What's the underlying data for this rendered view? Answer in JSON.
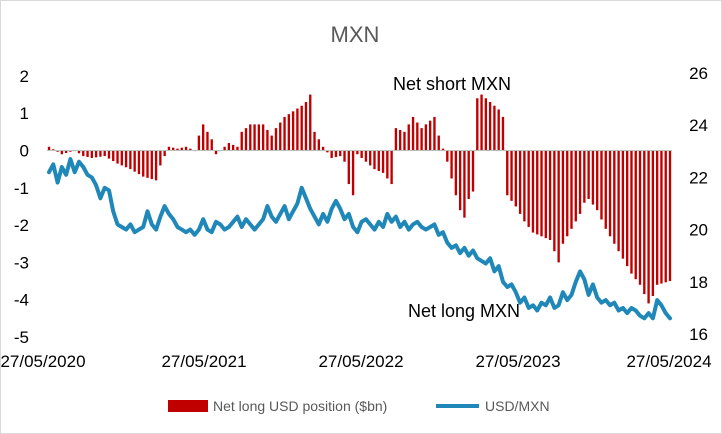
{
  "chart_data": {
    "type": "bar+line",
    "title": "MXN",
    "x_tick_labels": [
      "27/05/2020",
      "27/05/2021",
      "27/05/2022",
      "27/05/2023",
      "27/05/2024"
    ],
    "y_left": {
      "ticks": [
        2,
        1,
        0,
        -1,
        -2,
        -3,
        -4,
        -5
      ],
      "range": [
        -5,
        2
      ]
    },
    "y_right": {
      "ticks": [
        26,
        24,
        22,
        20,
        18,
        16
      ],
      "range": [
        16,
        26
      ]
    },
    "annotations": {
      "net_short": "Net short MXN",
      "net_long": "Net long MXN"
    },
    "grid": false,
    "legend_position": "bottom",
    "series": [
      {
        "name": "Net long USD position ($bn)",
        "type": "bar",
        "axis": "left",
        "color": "#C00000",
        "keyframes": [
          [
            0,
            0.1
          ],
          [
            3,
            -0.1
          ],
          [
            6,
            0.0
          ],
          [
            8,
            -0.15
          ],
          [
            10,
            -0.2
          ],
          [
            13,
            -0.15
          ],
          [
            16,
            -0.35
          ],
          [
            19,
            -0.5
          ],
          [
            22,
            -0.7
          ],
          [
            25,
            -0.8
          ],
          [
            26,
            -0.4
          ],
          [
            28,
            0.1
          ],
          [
            30,
            0.05
          ],
          [
            32,
            0.1
          ],
          [
            34,
            0.0
          ],
          [
            35,
            0.4
          ],
          [
            36,
            0.7
          ],
          [
            37,
            0.5
          ],
          [
            38,
            0.3
          ],
          [
            39,
            -0.1
          ],
          [
            40,
            0.0
          ],
          [
            42,
            0.2
          ],
          [
            44,
            0.1
          ],
          [
            45,
            0.5
          ],
          [
            47,
            0.7
          ],
          [
            50,
            0.7
          ],
          [
            52,
            0.4
          ],
          [
            53,
            0.6
          ],
          [
            55,
            0.9
          ],
          [
            57,
            1.05
          ],
          [
            59,
            1.2
          ],
          [
            60,
            1.3
          ],
          [
            61,
            1.5
          ],
          [
            62,
            0.5
          ],
          [
            64,
            0.1
          ],
          [
            66,
            -0.2
          ],
          [
            68,
            -0.15
          ],
          [
            69,
            -0.3
          ],
          [
            70,
            -0.9
          ],
          [
            71,
            -1.2
          ],
          [
            72,
            -0.1
          ],
          [
            74,
            -0.3
          ],
          [
            76,
            -0.5
          ],
          [
            78,
            -0.6
          ],
          [
            80,
            -0.9
          ],
          [
            81,
            0.6
          ],
          [
            83,
            0.5
          ],
          [
            85,
            0.9
          ],
          [
            87,
            0.6
          ],
          [
            89,
            0.8
          ],
          [
            90,
            0.9
          ],
          [
            91,
            0.4
          ],
          [
            93,
            -0.3
          ],
          [
            95,
            -1.2
          ],
          [
            96,
            -1.6
          ],
          [
            97,
            -1.8
          ],
          [
            98,
            -1.3
          ],
          [
            99,
            -1.1
          ],
          [
            100,
            1.4
          ],
          [
            101,
            1.5
          ],
          [
            103,
            1.3
          ],
          [
            105,
            1.1
          ],
          [
            106,
            0.9
          ],
          [
            107,
            -1.2
          ],
          [
            109,
            -1.5
          ],
          [
            111,
            -1.9
          ],
          [
            113,
            -2.2
          ],
          [
            115,
            -2.3
          ],
          [
            117,
            -2.4
          ],
          [
            119,
            -3.0
          ],
          [
            120,
            -2.5
          ],
          [
            122,
            -2.1
          ],
          [
            124,
            -1.7
          ],
          [
            125,
            -1.4
          ],
          [
            126,
            -1.3
          ],
          [
            128,
            -1.6
          ],
          [
            130,
            -2.1
          ],
          [
            132,
            -2.5
          ],
          [
            134,
            -2.9
          ],
          [
            136,
            -3.3
          ],
          [
            138,
            -3.6
          ],
          [
            140,
            -4.1
          ],
          [
            141,
            -3.9
          ],
          [
            142,
            -3.6
          ],
          [
            145,
            -3.5
          ]
        ]
      },
      {
        "name": "USD/MXN",
        "type": "line",
        "axis": "right",
        "color": "#1F88B8",
        "points": [
          [
            0,
            22.2
          ],
          [
            1,
            22.5
          ],
          [
            2,
            21.8
          ],
          [
            3,
            22.4
          ],
          [
            4,
            22.1
          ],
          [
            5,
            22.7
          ],
          [
            6,
            22.2
          ],
          [
            7,
            22.6
          ],
          [
            8,
            22.4
          ],
          [
            9,
            22.1
          ],
          [
            10,
            22.0
          ],
          [
            11,
            21.7
          ],
          [
            12,
            21.2
          ],
          [
            13,
            21.6
          ],
          [
            14,
            21.5
          ],
          [
            15,
            20.7
          ],
          [
            16,
            20.2
          ],
          [
            17,
            20.1
          ],
          [
            18,
            20.0
          ],
          [
            19,
            20.2
          ],
          [
            20,
            19.9
          ],
          [
            21,
            20.0
          ],
          [
            22,
            20.1
          ],
          [
            23,
            20.7
          ],
          [
            24,
            20.2
          ],
          [
            25,
            20.0
          ],
          [
            26,
            20.5
          ],
          [
            27,
            20.9
          ],
          [
            28,
            20.6
          ],
          [
            29,
            20.4
          ],
          [
            30,
            20.1
          ],
          [
            31,
            20.0
          ],
          [
            32,
            19.9
          ],
          [
            33,
            20.0
          ],
          [
            34,
            19.8
          ],
          [
            35,
            20.0
          ],
          [
            36,
            20.4
          ],
          [
            37,
            20.0
          ],
          [
            38,
            19.9
          ],
          [
            39,
            20.3
          ],
          [
            40,
            20.2
          ],
          [
            41,
            20.0
          ],
          [
            42,
            20.1
          ],
          [
            43,
            20.3
          ],
          [
            44,
            20.5
          ],
          [
            45,
            20.1
          ],
          [
            46,
            20.4
          ],
          [
            47,
            20.2
          ],
          [
            48,
            20.0
          ],
          [
            49,
            20.2
          ],
          [
            50,
            20.4
          ],
          [
            51,
            20.9
          ],
          [
            52,
            20.5
          ],
          [
            53,
            20.3
          ],
          [
            54,
            20.6
          ],
          [
            55,
            20.9
          ],
          [
            56,
            20.4
          ],
          [
            57,
            20.7
          ],
          [
            58,
            21.0
          ],
          [
            59,
            21.6
          ],
          [
            60,
            21.2
          ],
          [
            61,
            20.8
          ],
          [
            62,
            20.5
          ],
          [
            63,
            20.2
          ],
          [
            64,
            20.6
          ],
          [
            65,
            20.3
          ],
          [
            66,
            20.8
          ],
          [
            67,
            21.1
          ],
          [
            68,
            20.8
          ],
          [
            69,
            20.4
          ],
          [
            70,
            20.6
          ],
          [
            71,
            20.1
          ],
          [
            72,
            19.9
          ],
          [
            73,
            20.3
          ],
          [
            74,
            20.4
          ],
          [
            75,
            20.2
          ],
          [
            76,
            20.0
          ],
          [
            77,
            20.3
          ],
          [
            78,
            20.1
          ],
          [
            79,
            20.6
          ],
          [
            80,
            20.3
          ],
          [
            81,
            20.5
          ],
          [
            82,
            20.1
          ],
          [
            83,
            20.3
          ],
          [
            84,
            20.0
          ],
          [
            85,
            20.2
          ],
          [
            86,
            20.3
          ],
          [
            87,
            20.1
          ],
          [
            88,
            20.0
          ],
          [
            89,
            20.1
          ],
          [
            90,
            20.2
          ],
          [
            91,
            19.8
          ],
          [
            92,
            19.9
          ],
          [
            93,
            19.5
          ],
          [
            94,
            19.3
          ],
          [
            95,
            19.4
          ],
          [
            96,
            19.1
          ],
          [
            97,
            19.3
          ],
          [
            98,
            19.0
          ],
          [
            99,
            19.2
          ],
          [
            100,
            18.9
          ],
          [
            101,
            18.8
          ],
          [
            102,
            18.7
          ],
          [
            103,
            18.9
          ],
          [
            104,
            18.4
          ],
          [
            105,
            18.6
          ],
          [
            106,
            18.0
          ],
          [
            107,
            17.8
          ],
          [
            108,
            17.9
          ],
          [
            109,
            17.6
          ],
          [
            110,
            17.2
          ],
          [
            111,
            17.4
          ],
          [
            112,
            17.0
          ],
          [
            113,
            17.1
          ],
          [
            114,
            16.9
          ],
          [
            115,
            17.2
          ],
          [
            116,
            17.1
          ],
          [
            117,
            17.4
          ],
          [
            118,
            17.0
          ],
          [
            119,
            17.1
          ],
          [
            120,
            17.6
          ],
          [
            121,
            17.3
          ],
          [
            122,
            17.5
          ],
          [
            123,
            18.0
          ],
          [
            124,
            18.4
          ],
          [
            125,
            18.1
          ],
          [
            126,
            17.5
          ],
          [
            127,
            17.9
          ],
          [
            128,
            17.4
          ],
          [
            129,
            17.2
          ],
          [
            130,
            17.3
          ],
          [
            131,
            17.1
          ],
          [
            132,
            17.2
          ],
          [
            133,
            16.9
          ],
          [
            134,
            17.0
          ],
          [
            135,
            16.8
          ],
          [
            136,
            17.0
          ],
          [
            137,
            16.9
          ],
          [
            138,
            16.7
          ],
          [
            139,
            16.6
          ],
          [
            140,
            16.8
          ],
          [
            141,
            16.6
          ],
          [
            142,
            17.3
          ],
          [
            143,
            17.1
          ],
          [
            144,
            16.8
          ],
          [
            145,
            16.6
          ]
        ]
      }
    ]
  }
}
